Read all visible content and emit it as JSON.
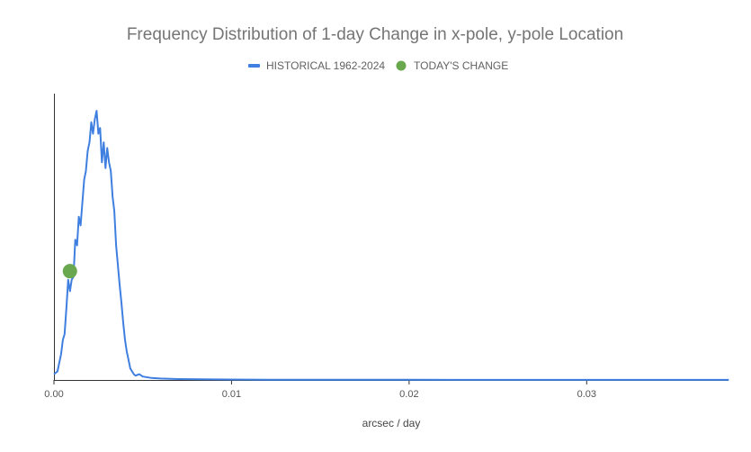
{
  "chart_data": {
    "type": "line",
    "title": "Frequency Distribution of 1-day Change in x-pole, y-pole Location",
    "xlabel": "arcsec / day",
    "ylabel": "",
    "xlim": [
      0,
      0.039
    ],
    "ylim": [
      0,
      1
    ],
    "x_ticks": [
      {
        "value": 0,
        "label": "0.00"
      },
      {
        "value": 0.01,
        "label": "0.01"
      },
      {
        "value": 0.02,
        "label": "0.02"
      },
      {
        "value": 0.03,
        "label": "0.03"
      }
    ],
    "legend_position": "top",
    "series": [
      {
        "name": "HISTORICAL 1962-2024",
        "kind": "line",
        "color": "#3f7fe0",
        "points": [
          [
            0.0,
            0.02
          ],
          [
            0.0002,
            0.03
          ],
          [
            0.0004,
            0.09
          ],
          [
            0.0005,
            0.14
          ],
          [
            0.0006,
            0.16
          ],
          [
            0.0007,
            0.25
          ],
          [
            0.0008,
            0.35
          ],
          [
            0.0009,
            0.31
          ],
          [
            0.001,
            0.35
          ],
          [
            0.0011,
            0.36
          ],
          [
            0.0012,
            0.49
          ],
          [
            0.0013,
            0.47
          ],
          [
            0.0014,
            0.57
          ],
          [
            0.0015,
            0.54
          ],
          [
            0.0016,
            0.62
          ],
          [
            0.0017,
            0.7
          ],
          [
            0.0018,
            0.73
          ],
          [
            0.0019,
            0.8
          ],
          [
            0.002,
            0.83
          ],
          [
            0.0021,
            0.9
          ],
          [
            0.0022,
            0.86
          ],
          [
            0.0023,
            0.91
          ],
          [
            0.0024,
            0.94
          ],
          [
            0.0025,
            0.86
          ],
          [
            0.0026,
            0.88
          ],
          [
            0.0027,
            0.76
          ],
          [
            0.0028,
            0.83
          ],
          [
            0.0029,
            0.74
          ],
          [
            0.003,
            0.81
          ],
          [
            0.0031,
            0.76
          ],
          [
            0.0032,
            0.73
          ],
          [
            0.0033,
            0.64
          ],
          [
            0.0034,
            0.59
          ],
          [
            0.0035,
            0.47
          ],
          [
            0.0036,
            0.4
          ],
          [
            0.0037,
            0.33
          ],
          [
            0.0038,
            0.27
          ],
          [
            0.0039,
            0.2
          ],
          [
            0.004,
            0.14
          ],
          [
            0.0041,
            0.1
          ],
          [
            0.0042,
            0.07
          ],
          [
            0.0043,
            0.04
          ],
          [
            0.0044,
            0.03
          ],
          [
            0.0045,
            0.02
          ],
          [
            0.0046,
            0.015
          ],
          [
            0.0048,
            0.02
          ],
          [
            0.005,
            0.012
          ],
          [
            0.0055,
            0.007
          ],
          [
            0.006,
            0.005
          ],
          [
            0.007,
            0.003
          ],
          [
            0.009,
            0.002
          ],
          [
            0.012,
            0.001
          ],
          [
            0.02,
            0.0005
          ],
          [
            0.03,
            0.0003
          ],
          [
            0.038,
            0.0003
          ]
        ]
      },
      {
        "name": "TODAY'S CHANGE",
        "kind": "point",
        "color": "#6aa84f",
        "x": 0.0009,
        "y": 0.38
      }
    ]
  }
}
